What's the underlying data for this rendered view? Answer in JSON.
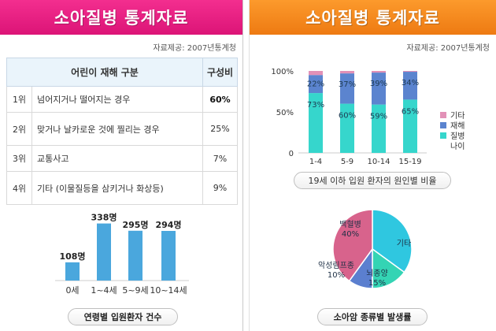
{
  "left": {
    "banner_title": "소아질병 통계자료",
    "source": "자료제공: 2007년통계청",
    "table": {
      "header_category": "어린이 재해 구분",
      "header_ratio": "구성비",
      "rows": [
        {
          "rank": "1위",
          "label": "넘어지거나 떨어지는 경우",
          "ratio": "60%"
        },
        {
          "rank": "2위",
          "label": "맞거나 날카로운 것에 찔리는 경우",
          "ratio": "25%"
        },
        {
          "rank": "3위",
          "label": "교통사고",
          "ratio": "7%"
        },
        {
          "rank": "4위",
          "label": "기타 (이물질등을 삼키거나 화상등)",
          "ratio": "9%"
        }
      ]
    },
    "caption": "연령별 입원환자 건수"
  },
  "right": {
    "banner_title": "소아질병 통계자료",
    "source": "자료제공: 2007년통계청",
    "bar_caption": "19세 이하 입원 환자의 원인별 비율",
    "pie_caption": "소아암 종류별 발생률"
  },
  "colors": {
    "pink_banner": "#e81e84",
    "orange_banner": "#f58a1f",
    "bar_blue": "#4aa7dd",
    "illness_teal": "#36d6cc",
    "injury_blue": "#5b84cf",
    "other_pink": "#e291b7",
    "pie_pink": "#d8638c",
    "pie_cyan": "#2fc7e0",
    "pie_teal": "#34d4b4",
    "pie_blue": "#5b7fcf"
  },
  "chart_data": [
    {
      "type": "bar",
      "categories": [
        "0세",
        "1~4세",
        "5~9세",
        "10~14세"
      ],
      "values": [
        108,
        338,
        295,
        294
      ],
      "value_labels": [
        "108명",
        "338명",
        "295명",
        "294명"
      ],
      "ylim": [
        0,
        350
      ],
      "title": "연령별 입원환자 건수"
    },
    {
      "type": "bar",
      "stacked": true,
      "categories": [
        "1-4",
        "5-9",
        "10-14",
        "15-19"
      ],
      "y_ticks": [
        "0",
        "50%",
        "100%"
      ],
      "ylim": [
        0,
        100
      ],
      "series": [
        {
          "name": "질병",
          "values": [
            73,
            60,
            59,
            65
          ],
          "labels": [
            "73%",
            "60%",
            "59%",
            "65%"
          ]
        },
        {
          "name": "재해",
          "values": [
            22,
            37,
            39,
            34
          ],
          "labels": [
            "22%",
            "37%",
            "39%",
            "34%"
          ]
        },
        {
          "name": "기타",
          "values": [
            5,
            3,
            2,
            1
          ]
        }
      ],
      "legend_title": "나이",
      "legend_position": "right",
      "title": "19세 이하 입원 환자의 원인별 비율"
    },
    {
      "type": "pie",
      "slices": [
        {
          "label": "기타",
          "value": 35
        },
        {
          "label": "뇌종양",
          "value": 15,
          "value_label": "15%"
        },
        {
          "label": "악성림프종",
          "value": 10,
          "value_label": "10%"
        },
        {
          "label": "백혈병",
          "value": 40,
          "value_label": "40%"
        }
      ],
      "title": "소아암 종류별 발생률"
    }
  ]
}
